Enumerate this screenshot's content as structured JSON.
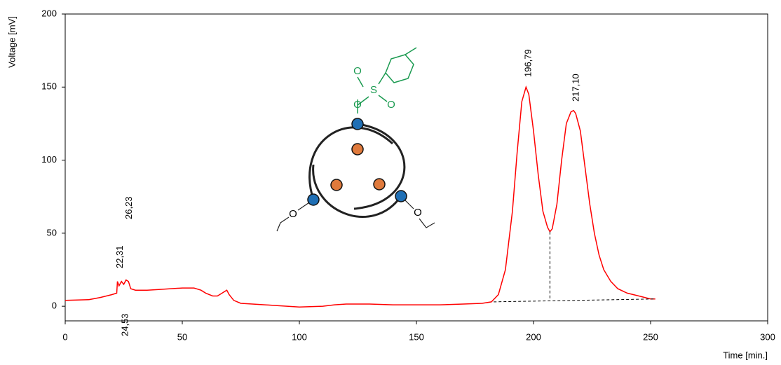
{
  "chart_data": {
    "type": "line",
    "x_label": "Time [min.]",
    "y_label": "Voltage [mV]",
    "xlim": [
      0,
      300
    ],
    "xticks": [
      0,
      50,
      100,
      150,
      200,
      250,
      300
    ],
    "ylim": [
      -10,
      200
    ],
    "yticks": [
      0,
      50,
      100,
      150,
      200
    ],
    "color": "#ff0000",
    "x": [
      0,
      10,
      15,
      20,
      22,
      22.3,
      23,
      24,
      25,
      26,
      27,
      28,
      30,
      35,
      40,
      45,
      50,
      55,
      58,
      60,
      63,
      65,
      67,
      69,
      70,
      72,
      75,
      80,
      90,
      100,
      110,
      115,
      120,
      130,
      140,
      150,
      160,
      170,
      178,
      182,
      185,
      188,
      191,
      193,
      195,
      196.8,
      198,
      200,
      202,
      204,
      206,
      207,
      208,
      210,
      212,
      214,
      216,
      217.1,
      218,
      220,
      222,
      224,
      226,
      228,
      230,
      233,
      236,
      240,
      245,
      250,
      252
    ],
    "values": [
      4,
      4.5,
      6,
      8,
      9,
      17,
      14,
      17,
      15,
      18,
      17,
      12,
      11,
      11,
      11.5,
      12,
      12.5,
      12.5,
      11,
      9,
      7,
      7,
      9,
      11,
      8,
      4,
      2,
      1.5,
      0.5,
      -0.5,
      0,
      1,
      1.5,
      1.5,
      1,
      1,
      1,
      1.5,
      2,
      3,
      8,
      25,
      65,
      105,
      140,
      150,
      145,
      120,
      90,
      65,
      54,
      51,
      53,
      70,
      100,
      125,
      133,
      134,
      132,
      120,
      95,
      70,
      50,
      35,
      25,
      17,
      12,
      9,
      7,
      5,
      5
    ],
    "baselines": [
      {
        "x": [
          183,
          252
        ],
        "values": [
          3,
          5
        ]
      },
      {
        "x": [
          207,
          207
        ],
        "values": [
          51,
          4
        ]
      }
    ],
    "peaks": [
      {
        "x": 22.31,
        "label": "22,31"
      },
      {
        "x": 26.23,
        "label": "26,23"
      },
      {
        "x": 24.53,
        "label": "24,53"
      },
      {
        "x": 196.79,
        "label": "196,79"
      },
      {
        "x": 217.1,
        "label": "217,10"
      }
    ],
    "inset_atoms": [
      "O",
      "S",
      "O",
      "O",
      "O",
      "O",
      "O"
    ]
  }
}
